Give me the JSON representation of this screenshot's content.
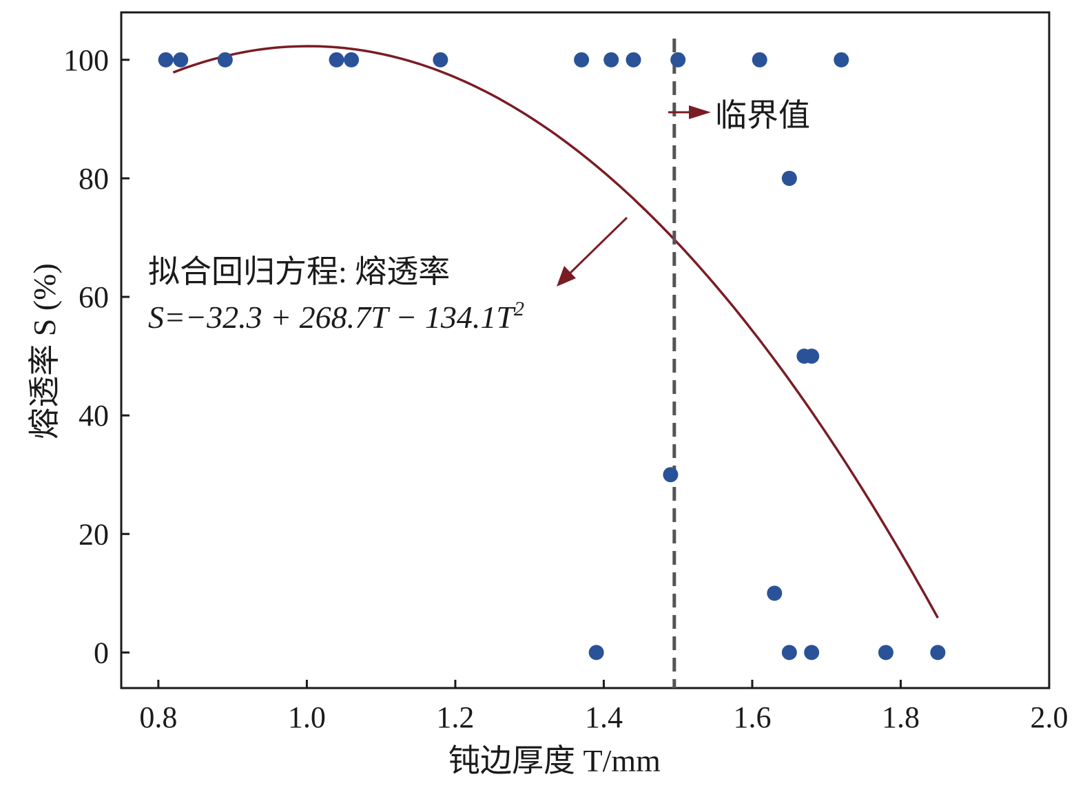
{
  "chart_data": {
    "type": "scatter",
    "title": "",
    "xlabel": "钝边厚度 T/mm",
    "ylabel": "熔透率 S (%)",
    "xlim": [
      0.75,
      2.0
    ],
    "ylim": [
      -6,
      108
    ],
    "x_ticks": [
      "0.8",
      "1.0",
      "1.2",
      "1.4",
      "1.6",
      "1.8",
      "2.0"
    ],
    "y_ticks": [
      "0",
      "20",
      "40",
      "60",
      "80",
      "100"
    ],
    "grid": false,
    "series": [
      {
        "type": "scatter",
        "color": "#2a5298",
        "points": [
          [
            0.81,
            100
          ],
          [
            0.83,
            100
          ],
          [
            0.89,
            100
          ],
          [
            1.04,
            100
          ],
          [
            1.06,
            100
          ],
          [
            1.18,
            100
          ],
          [
            1.37,
            100
          ],
          [
            1.41,
            100
          ],
          [
            1.44,
            100
          ],
          [
            1.5,
            100
          ],
          [
            1.61,
            100
          ],
          [
            1.72,
            100
          ],
          [
            1.65,
            80
          ],
          [
            1.67,
            50
          ],
          [
            1.68,
            50
          ],
          [
            1.49,
            30
          ],
          [
            1.63,
            10
          ],
          [
            1.39,
            0
          ],
          [
            1.65,
            0
          ],
          [
            1.68,
            0
          ],
          [
            1.78,
            0
          ],
          [
            1.85,
            0
          ]
        ]
      },
      {
        "type": "line",
        "color": "#7a1c24",
        "equation": {
          "intercept": -32.3,
          "b1": 268.7,
          "b2": -134.1
        },
        "x_range": [
          0.82,
          1.85
        ]
      }
    ],
    "threshold": {
      "x": 1.495,
      "style": "dashed",
      "color": "#555555",
      "label": "临界值"
    },
    "annotations": {
      "equation_line1": "拟合回归方程: 熔透率",
      "equation_line2": "S=−32.3 + 268.7T − 134.1T",
      "equation_exp": "2"
    }
  }
}
